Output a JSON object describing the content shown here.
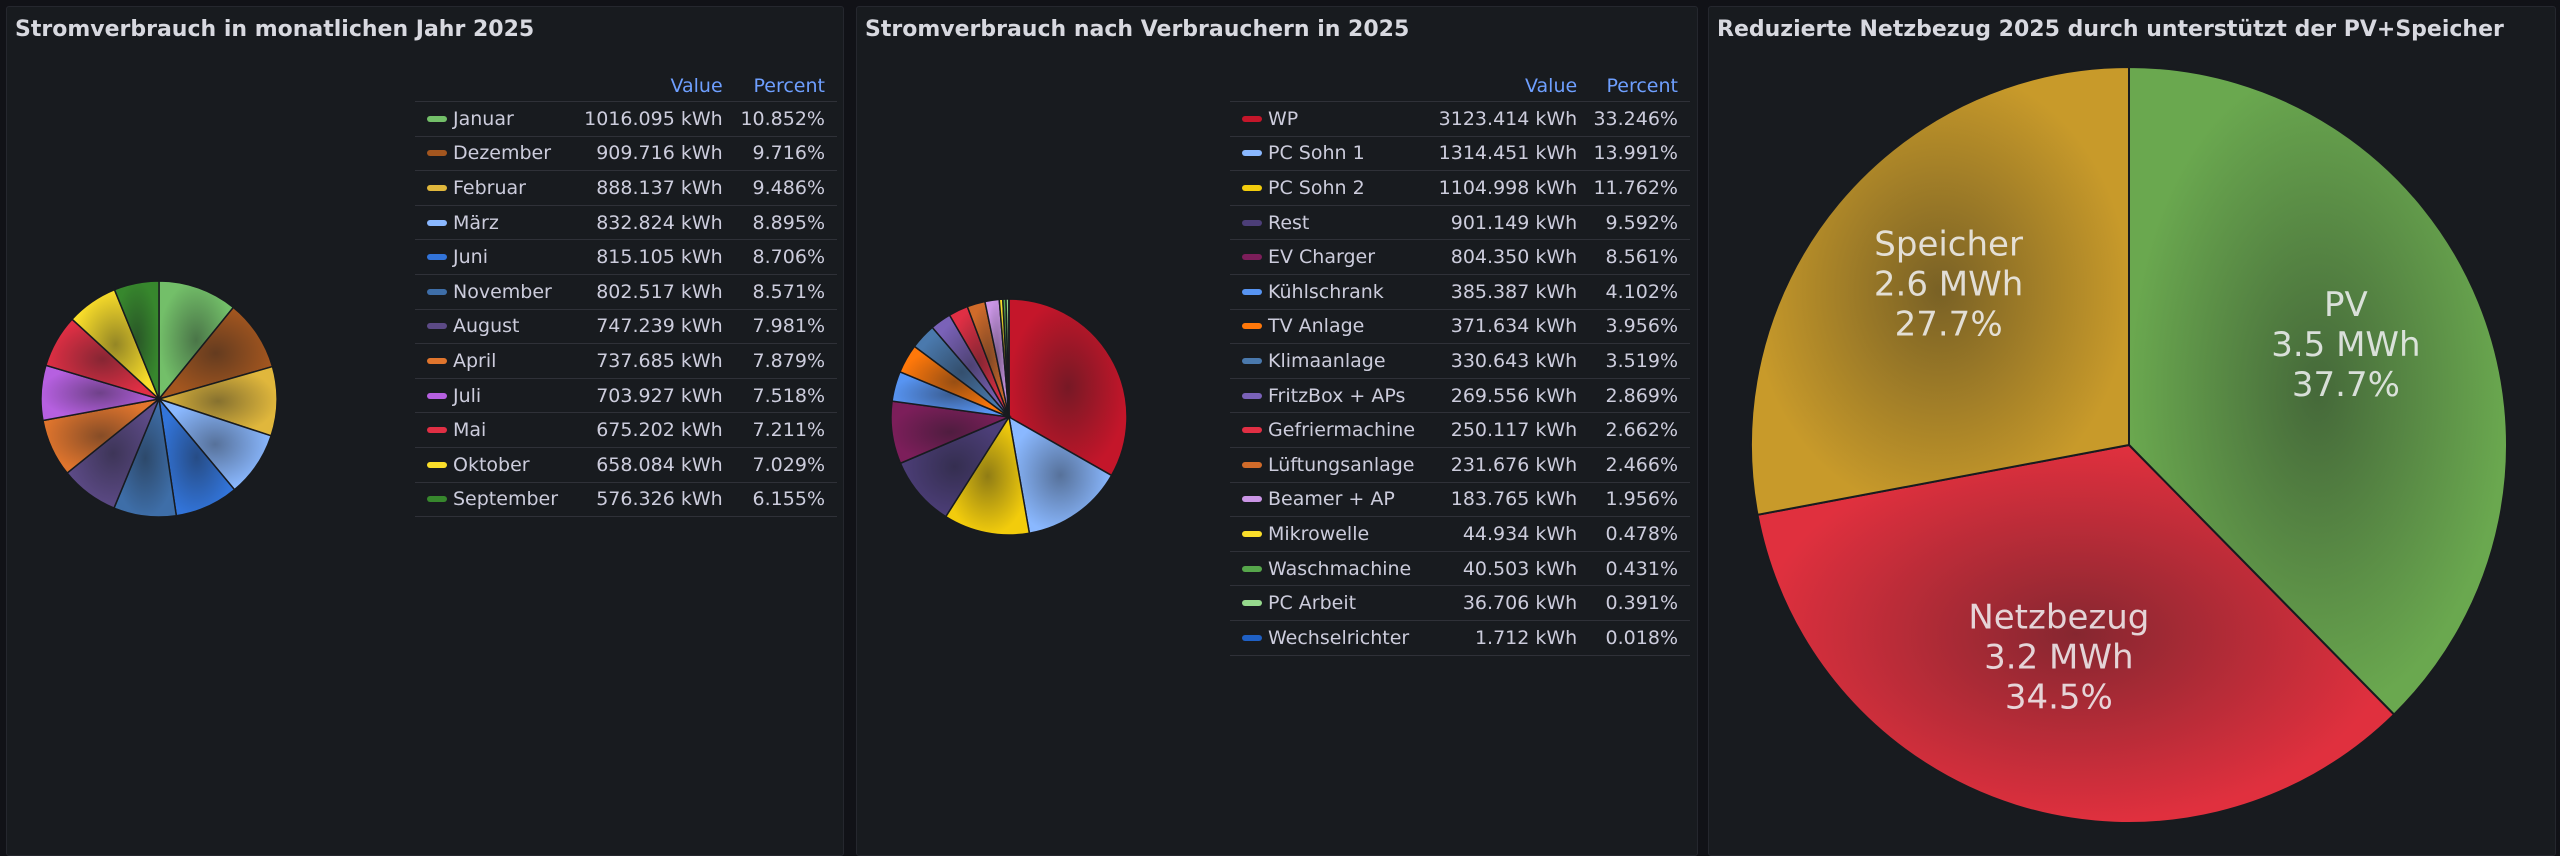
{
  "panels": [
    {
      "title": "Stromverbrauch in monatlichen Jahr 2025"
    },
    {
      "title": "Stromverbrauch nach Verbrauchern in 2025"
    },
    {
      "title": "Reduzierte Netzbezug 2025 durch unterstützt der PV+Speicher"
    }
  ],
  "legend_headers": {
    "value": "Value",
    "percent": "Percent"
  },
  "chart_data": [
    {
      "type": "pie",
      "title": "Stromverbrauch in monatlichen Jahr 2025",
      "unit": "kWh",
      "legend_placement": "right",
      "series": [
        {
          "name": "Januar",
          "value": 1016.095,
          "value_label": "1016.095 kWh",
          "percent_label": "10.852%",
          "color": "#73bf69"
        },
        {
          "name": "Dezember",
          "value": 909.716,
          "value_label": "909.716 kWh",
          "percent_label": "9.716%",
          "color": "#a3561f"
        },
        {
          "name": "Februar",
          "value": 888.137,
          "value_label": "888.137 kWh",
          "percent_label": "9.486%",
          "color": "#e0b73c"
        },
        {
          "name": "März",
          "value": 832.824,
          "value_label": "832.824 kWh",
          "percent_label": "8.895%",
          "color": "#8ab8ff"
        },
        {
          "name": "Juni",
          "value": 815.105,
          "value_label": "815.105 kWh",
          "percent_label": "8.706%",
          "color": "#3274d9"
        },
        {
          "name": "November",
          "value": 802.517,
          "value_label": "802.517 kWh",
          "percent_label": "8.571%",
          "color": "#3e6ea8"
        },
        {
          "name": "August",
          "value": 747.239,
          "value_label": "747.239 kWh",
          "percent_label": "7.981%",
          "color": "#5c4a86"
        },
        {
          "name": "April",
          "value": 737.685,
          "value_label": "737.685 kWh",
          "percent_label": "7.879%",
          "color": "#e0752d"
        },
        {
          "name": "Juli",
          "value": 703.927,
          "value_label": "703.927 kWh",
          "percent_label": "7.518%",
          "color": "#b660e0"
        },
        {
          "name": "Mai",
          "value": 675.202,
          "value_label": "675.202 kWh",
          "percent_label": "7.211%",
          "color": "#e02f44"
        },
        {
          "name": "Oktober",
          "value": 658.084,
          "value_label": "658.084 kWh",
          "percent_label": "7.029%",
          "color": "#fade2a"
        },
        {
          "name": "September",
          "value": 576.326,
          "value_label": "576.326 kWh",
          "percent_label": "6.155%",
          "color": "#37872d"
        }
      ]
    },
    {
      "type": "pie",
      "title": "Stromverbrauch nach Verbrauchern in 2025",
      "unit": "kWh",
      "legend_placement": "right",
      "series": [
        {
          "name": "WP",
          "value": 3123.414,
          "value_label": "3123.414 kWh",
          "percent_label": "33.246%",
          "color": "#c4162a"
        },
        {
          "name": "PC Sohn 1",
          "value": 1314.451,
          "value_label": "1314.451 kWh",
          "percent_label": "13.991%",
          "color": "#8ab8ff"
        },
        {
          "name": "PC Sohn 2",
          "value": 1104.998,
          "value_label": "1104.998 kWh",
          "percent_label": "11.762%",
          "color": "#f2cc0c"
        },
        {
          "name": "Rest",
          "value": 901.149,
          "value_label": "901.149 kWh",
          "percent_label": "9.592%",
          "color": "#4c3e78"
        },
        {
          "name": "EV Charger",
          "value": 804.35,
          "value_label": "804.350 kWh",
          "percent_label": "8.561%",
          "color": "#7c1e5a"
        },
        {
          "name": "Kühlschrank",
          "value": 385.387,
          "value_label": "385.387 kWh",
          "percent_label": "4.102%",
          "color": "#5794f2"
        },
        {
          "name": "TV Anlage",
          "value": 371.634,
          "value_label": "371.634 kWh",
          "percent_label": "3.956%",
          "color": "#ff780a"
        },
        {
          "name": "Klimaanlage",
          "value": 330.643,
          "value_label": "330.643 kWh",
          "percent_label": "3.519%",
          "color": "#4a79ad"
        },
        {
          "name": "FritzBox + APs",
          "value": 269.556,
          "value_label": "269.556 kWh",
          "percent_label": "2.869%",
          "color": "#7a62b8"
        },
        {
          "name": "Gefriermachine",
          "value": 250.117,
          "value_label": "250.117 kWh",
          "percent_label": "2.662%",
          "color": "#e02f44"
        },
        {
          "name": "Lüftungsanlage",
          "value": 231.676,
          "value_label": "231.676 kWh",
          "percent_label": "2.466%",
          "color": "#d06b2a"
        },
        {
          "name": "Beamer + AP",
          "value": 183.765,
          "value_label": "183.765 kWh",
          "percent_label": "1.956%",
          "color": "#ca95e5"
        },
        {
          "name": "Mikrowelle",
          "value": 44.934,
          "value_label": "44.934 kWh",
          "percent_label": "0.478%",
          "color": "#fade2a"
        },
        {
          "name": "Waschmachine",
          "value": 40.503,
          "value_label": "40.503 kWh",
          "percent_label": "0.431%",
          "color": "#56a64b"
        },
        {
          "name": "PC Arbeit",
          "value": 36.706,
          "value_label": "36.706 kWh",
          "percent_label": "0.391%",
          "color": "#96d98d"
        },
        {
          "name": "Wechselrichter",
          "value": 1.712,
          "value_label": "1.712 kWh",
          "percent_label": "0.018%",
          "color": "#1f60c4"
        }
      ]
    },
    {
      "type": "pie",
      "title": "Reduzierte Netzbezug 2025 durch unterstützt der PV+Speicher",
      "unit": "MWh",
      "legend_placement": "none",
      "series": [
        {
          "name": "PV",
          "value": 3.5,
          "value_label": "3.5 MWh",
          "percent_label": "37.7%",
          "color": "#6aa84f"
        },
        {
          "name": "Netzbezug",
          "value": 3.2,
          "value_label": "3.2 MWh",
          "percent_label": "34.5%",
          "color": "#e0303e"
        },
        {
          "name": "Speicher",
          "value": 2.6,
          "value_label": "2.6 MWh",
          "percent_label": "27.7%",
          "color": "#c89a2a"
        }
      ]
    }
  ]
}
